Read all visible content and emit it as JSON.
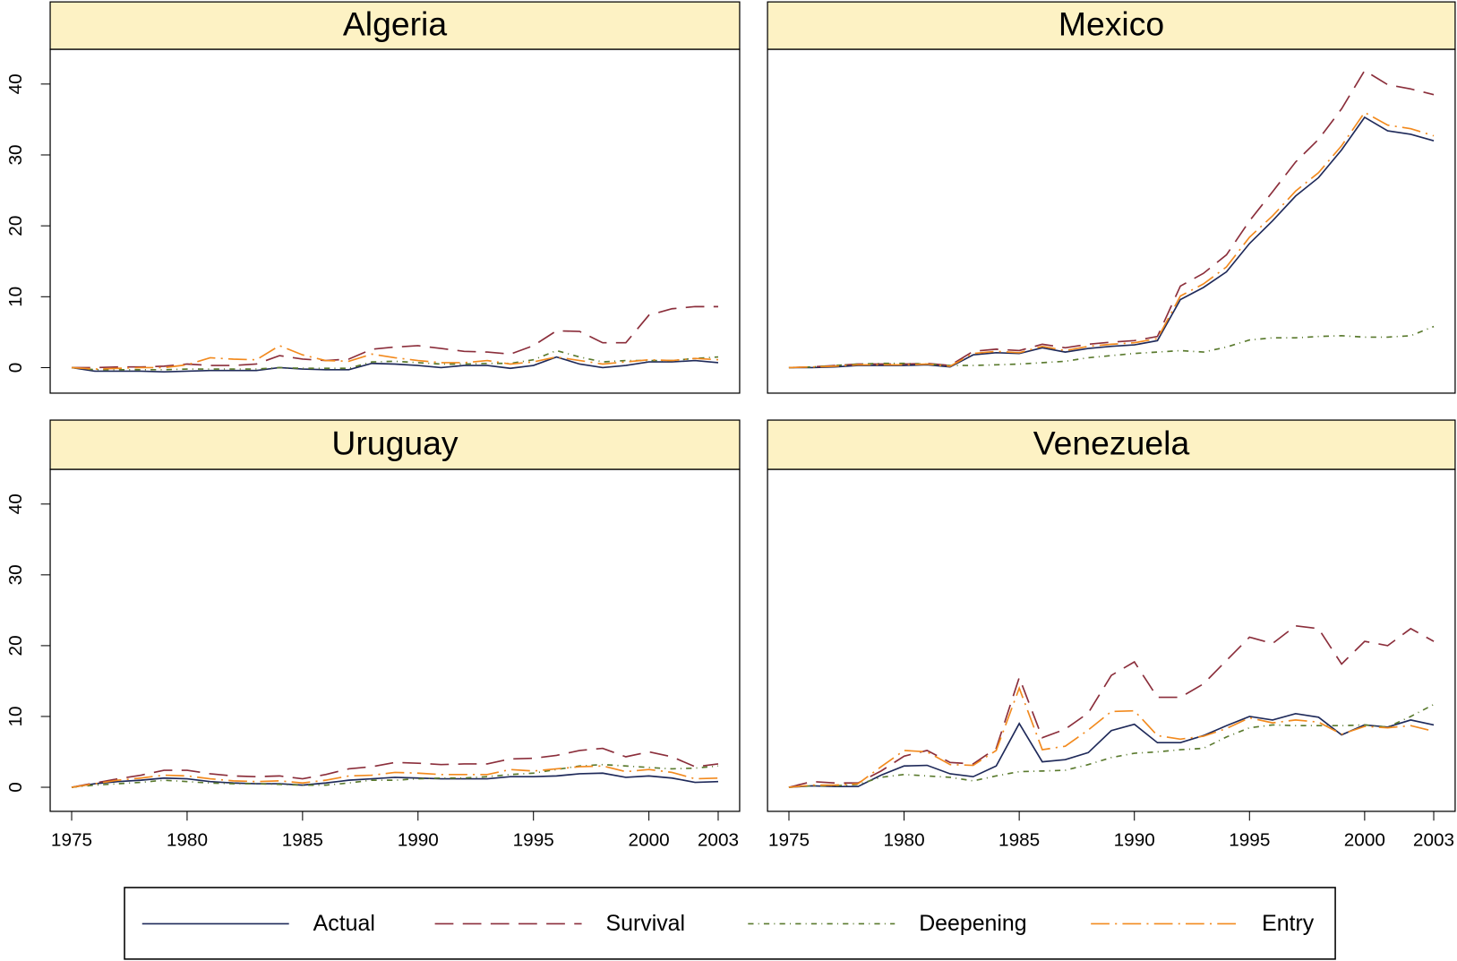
{
  "chart_data": [
    {
      "type": "line",
      "title": "Algeria",
      "x": [
        1975,
        1976,
        1977,
        1978,
        1979,
        1980,
        1981,
        1982,
        1983,
        1984,
        1985,
        1986,
        1987,
        1988,
        1989,
        1990,
        1991,
        1992,
        1993,
        1994,
        1995,
        1996,
        1997,
        1998,
        1999,
        2000,
        2001,
        2002,
        2003
      ],
      "xlim": [
        1974.07,
        2003.93
      ],
      "ylim": [
        -3.6,
        44.9
      ],
      "yticks": [
        0,
        10,
        20,
        30,
        40
      ],
      "series": [
        {
          "name": "Actual",
          "color": "#1f2a5a",
          "values": [
            0,
            -0.5,
            -0.5,
            -0.5,
            -0.6,
            -0.5,
            -0.4,
            -0.4,
            -0.4,
            0,
            -0.2,
            -0.3,
            -0.3,
            0.6,
            0.5,
            0.3,
            0,
            0.3,
            0.3,
            -0.1,
            0.3,
            1.5,
            0.5,
            0,
            0.3,
            0.8,
            0.8,
            1,
            0.7
          ]
        },
        {
          "name": "Survival",
          "color": "#8b2e3b",
          "values": [
            0,
            0,
            0.1,
            0.1,
            0.2,
            0.5,
            0.3,
            0.3,
            0.5,
            1.7,
            1.2,
            1,
            1.2,
            2.6,
            2.9,
            3.1,
            2.7,
            2.3,
            2.2,
            1.9,
            3.1,
            5.2,
            5.1,
            3.5,
            3.5,
            7.4,
            8.3,
            8.6,
            8.6
          ]
        },
        {
          "name": "Deepening",
          "color": "#5a7a2e",
          "values": [
            0,
            -0.3,
            -0.3,
            -0.3,
            -0.3,
            -0.2,
            -0.2,
            -0.2,
            -0.2,
            0,
            -0.1,
            -0.1,
            -0.1,
            0.8,
            0.9,
            0.7,
            0.5,
            0.5,
            0.6,
            0.6,
            1.1,
            2.4,
            1.5,
            0.8,
            1,
            1,
            1,
            1.3,
            1.5
          ]
        },
        {
          "name": "Entry",
          "color": "#f28a1e",
          "values": [
            0,
            -0.2,
            -0.1,
            0,
            0,
            0.4,
            1.4,
            1.2,
            1.1,
            3.1,
            1.8,
            1,
            0.9,
            1.9,
            1.4,
            1,
            0.7,
            0.7,
            1,
            0.5,
            0.8,
            1.5,
            1,
            0.5,
            0.8,
            1.1,
            1,
            1.3,
            1.1
          ]
        }
      ]
    },
    {
      "type": "line",
      "title": "Mexico",
      "x": [
        1975,
        1976,
        1977,
        1978,
        1979,
        1980,
        1981,
        1982,
        1983,
        1984,
        1985,
        1986,
        1987,
        1988,
        1989,
        1990,
        1991,
        1992,
        1993,
        1994,
        1995,
        1996,
        1997,
        1998,
        1999,
        2000,
        2001,
        2002,
        2003
      ],
      "xlim": [
        1974.07,
        2003.93
      ],
      "ylim": [
        -3.6,
        44.9
      ],
      "series": [
        {
          "name": "Actual",
          "color": "#1f2a5a",
          "values": [
            0,
            0,
            0.1,
            0.3,
            0.3,
            0.3,
            0.4,
            0.1,
            1.8,
            2.1,
            2,
            2.8,
            2.2,
            2.7,
            3,
            3.2,
            3.8,
            9.6,
            11.3,
            13.5,
            17.5,
            20.7,
            24.2,
            26.8,
            30.7,
            35.3,
            33.4,
            32.9,
            32
          ]
        },
        {
          "name": "Survival",
          "color": "#8b2e3b",
          "values": [
            0,
            0.1,
            0.3,
            0.5,
            0.5,
            0.5,
            0.6,
            0.3,
            2.3,
            2.6,
            2.4,
            3.3,
            2.8,
            3.3,
            3.6,
            3.8,
            4.4,
            11.5,
            13.3,
            15.9,
            20.7,
            24.8,
            29,
            32.2,
            36.5,
            41.9,
            39.9,
            39.3,
            38.5
          ]
        },
        {
          "name": "Deepening",
          "color": "#5a7a2e",
          "values": [
            0,
            0.1,
            0.3,
            0.5,
            0.6,
            0.6,
            0.5,
            0.3,
            0.3,
            0.4,
            0.5,
            0.7,
            0.9,
            1.4,
            1.7,
            2,
            2.2,
            2.4,
            2.2,
            2.9,
            3.9,
            4.2,
            4.2,
            4.4,
            4.5,
            4.3,
            4.3,
            4.5,
            5.8
          ]
        },
        {
          "name": "Entry",
          "color": "#f28a1e",
          "values": [
            0,
            0.1,
            0.2,
            0.4,
            0.4,
            0.4,
            0.5,
            0.2,
            2,
            2.3,
            2.1,
            3,
            2.4,
            3,
            3.3,
            3.5,
            4.1,
            10.1,
            11.8,
            14.2,
            18.4,
            21.4,
            24.9,
            27.5,
            31.3,
            36,
            34.2,
            33.7,
            32.7
          ]
        }
      ]
    },
    {
      "type": "line",
      "title": "Uruguay",
      "x": [
        1975,
        1976,
        1977,
        1978,
        1979,
        1980,
        1981,
        1982,
        1983,
        1984,
        1985,
        1986,
        1987,
        1988,
        1989,
        1990,
        1991,
        1992,
        1993,
        1994,
        1995,
        1996,
        1997,
        1998,
        1999,
        2000,
        2001,
        2002,
        2003
      ],
      "xlim": [
        1974.07,
        2003.93
      ],
      "ylim": [
        -3.4,
        44.9
      ],
      "yticks": [
        0,
        10,
        20,
        30,
        40
      ],
      "xticks": [
        1975,
        1980,
        1985,
        1990,
        1995,
        2000,
        2003
      ],
      "series": [
        {
          "name": "Actual",
          "color": "#1f2a5a",
          "values": [
            0,
            0.5,
            0.8,
            1,
            1.3,
            1.2,
            0.8,
            0.6,
            0.5,
            0.5,
            0.3,
            0.6,
            1,
            1.2,
            1.4,
            1.3,
            1.2,
            1.2,
            1.2,
            1.5,
            1.5,
            1.6,
            1.9,
            2,
            1.4,
            1.6,
            1.3,
            0.7,
            0.8
          ]
        },
        {
          "name": "Survival",
          "color": "#8b2e3b",
          "values": [
            0,
            0.6,
            1.2,
            1.7,
            2.4,
            2.4,
            1.9,
            1.6,
            1.5,
            1.6,
            1.2,
            1.8,
            2.6,
            2.9,
            3.5,
            3.4,
            3.2,
            3.3,
            3.3,
            4,
            4.1,
            4.5,
            5.2,
            5.5,
            4.3,
            5,
            4.3,
            2.9,
            3.3
          ]
        },
        {
          "name": "Deepening",
          "color": "#5a7a2e",
          "values": [
            0,
            0.3,
            0.5,
            0.7,
            1,
            0.8,
            0.6,
            0.5,
            0.5,
            0.4,
            0.3,
            0.3,
            0.6,
            1,
            1,
            1.2,
            1.3,
            1.3,
            1.5,
            1.8,
            2,
            2.5,
            3,
            3.2,
            3,
            2.8,
            2.6,
            2.7,
            3
          ]
        },
        {
          "name": "Entry",
          "color": "#f28a1e",
          "values": [
            0,
            0.5,
            1,
            1.3,
            1.7,
            1.6,
            1.2,
            0.9,
            0.8,
            0.9,
            0.6,
            1,
            1.6,
            1.7,
            2.1,
            2,
            1.8,
            1.8,
            1.8,
            2.5,
            2.3,
            2.6,
            2.9,
            3,
            2.2,
            2.5,
            2.1,
            1.2,
            1.3
          ]
        }
      ]
    },
    {
      "type": "line",
      "title": "Venezuela",
      "x": [
        1975,
        1976,
        1977,
        1978,
        1979,
        1980,
        1981,
        1982,
        1983,
        1984,
        1985,
        1986,
        1987,
        1988,
        1989,
        1990,
        1991,
        1992,
        1993,
        1994,
        1995,
        1996,
        1997,
        1998,
        1999,
        2000,
        2001,
        2002,
        2003
      ],
      "xlim": [
        1974.07,
        2003.93
      ],
      "ylim": [
        -3.4,
        44.9
      ],
      "xticks": [
        1975,
        1980,
        1985,
        1990,
        1995,
        2000,
        2003
      ],
      "series": [
        {
          "name": "Actual",
          "color": "#1f2a5a",
          "values": [
            0,
            0.2,
            0.1,
            0.1,
            1.7,
            3,
            3.1,
            1.9,
            1.5,
            3,
            9,
            3.6,
            3.9,
            4.9,
            8,
            8.9,
            6.3,
            6.3,
            7.3,
            8.7,
            10,
            9.5,
            10.4,
            9.9,
            7.4,
            8.8,
            8.5,
            9.5,
            8.8
          ]
        },
        {
          "name": "Survival",
          "color": "#8b2e3b",
          "values": [
            0,
            0.8,
            0.6,
            0.6,
            2.3,
            4.4,
            5.2,
            3.5,
            3.3,
            5.5,
            15.5,
            7,
            8.2,
            10.5,
            15.8,
            17.7,
            12.7,
            12.7,
            14.6,
            17.9,
            21.2,
            20.3,
            22.8,
            22.4,
            17.4,
            20.6,
            20,
            22.4,
            20.6
          ]
        },
        {
          "name": "Deepening",
          "color": "#5a7a2e",
          "values": [
            0,
            0.2,
            0.2,
            0.4,
            1.4,
            1.8,
            1.6,
            1.4,
            0.9,
            1.6,
            2.2,
            2.3,
            2.4,
            3.2,
            4.2,
            4.8,
            5,
            5.3,
            5.5,
            7.1,
            8.4,
            8.8,
            8.7,
            8.7,
            8.7,
            8.8,
            8.5,
            10,
            11.7
          ]
        },
        {
          "name": "Entry",
          "color": "#f28a1e",
          "values": [
            0,
            0.3,
            0.3,
            0.5,
            2.9,
            5.2,
            5,
            3.2,
            3.1,
            5.2,
            14,
            5.3,
            5.8,
            8.1,
            10.7,
            10.8,
            7.3,
            6.8,
            7.2,
            8.3,
            9.8,
            9.1,
            9.5,
            9.2,
            7.5,
            8.6,
            8.4,
            8.7,
            7.9
          ]
        }
      ]
    }
  ]
}
